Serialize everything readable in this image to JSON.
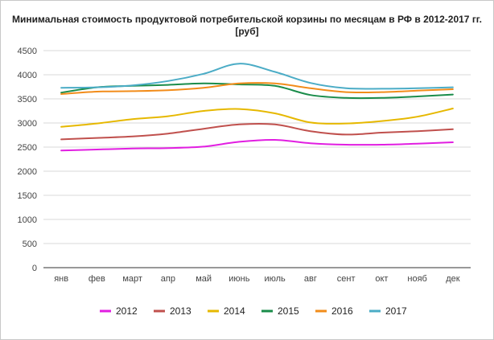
{
  "chart_data": {
    "type": "line",
    "title_line1": "Минимальная стоимость продуктовой потребительской корзины по месяцам в РФ в 2012-2017 гг.",
    "title_line2": "[руб]",
    "categories": [
      "янв",
      "фев",
      "март",
      "апр",
      "май",
      "июнь",
      "июль",
      "авг",
      "сент",
      "окт",
      "нояб",
      "дек"
    ],
    "ylim": [
      0,
      4500
    ],
    "yticks": [
      0,
      500,
      1000,
      1500,
      2000,
      2500,
      3000,
      3500,
      4000,
      4500
    ],
    "grid": true,
    "legend_position": "bottom",
    "series": [
      {
        "name": "2012",
        "color": "#e11ee1",
        "values": [
          2430,
          2450,
          2470,
          2480,
          2510,
          2610,
          2650,
          2580,
          2550,
          2550,
          2570,
          2600
        ]
      },
      {
        "name": "2013",
        "color": "#c0504d",
        "values": [
          2660,
          2690,
          2720,
          2780,
          2880,
          2970,
          2970,
          2830,
          2760,
          2800,
          2830,
          2870
        ]
      },
      {
        "name": "2014",
        "color": "#e6b800",
        "values": [
          2920,
          2990,
          3080,
          3140,
          3250,
          3290,
          3200,
          3010,
          2990,
          3040,
          3130,
          3300
        ]
      },
      {
        "name": "2015",
        "color": "#1a8c4a",
        "values": [
          3630,
          3740,
          3770,
          3790,
          3820,
          3800,
          3770,
          3580,
          3520,
          3520,
          3550,
          3590
        ]
      },
      {
        "name": "2016",
        "color": "#f28c1a",
        "values": [
          3600,
          3650,
          3660,
          3680,
          3730,
          3820,
          3820,
          3720,
          3640,
          3640,
          3670,
          3700
        ]
      },
      {
        "name": "2017",
        "color": "#4bacc6",
        "values": [
          3730,
          3740,
          3780,
          3870,
          4020,
          4230,
          4060,
          3830,
          3720,
          3710,
          3720,
          3740
        ]
      }
    ]
  }
}
